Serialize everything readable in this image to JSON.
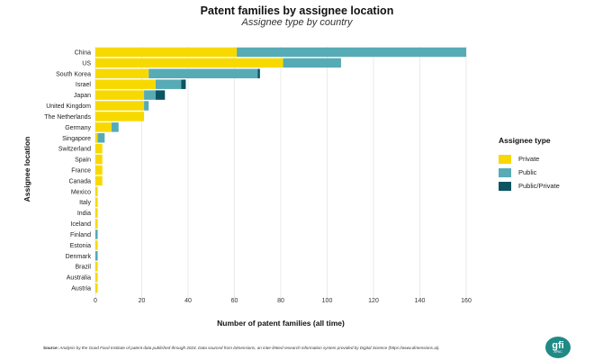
{
  "chart_data": {
    "type": "bar",
    "orientation": "horizontal",
    "stacked": true,
    "title": "Patent families by assignee location",
    "subtitle": "Assignee type by country",
    "xlabel": "Number of patent families (all time)",
    "ylabel": "Assignee location",
    "xlim": [
      0,
      160
    ],
    "xticks": [
      0,
      20,
      40,
      60,
      80,
      100,
      120,
      140,
      160
    ],
    "grid": "vertical",
    "legend_position": "right",
    "categories": [
      "China",
      "US",
      "South Korea",
      "Israel",
      "Japan",
      "United Kingdom",
      "The Netherlands",
      "Germany",
      "Singapore",
      "Switzerland",
      "Spain",
      "France",
      "Canada",
      "Mexico",
      "Italy",
      "India",
      "Iceland",
      "Finland",
      "Estonia",
      "Denmark",
      "Brazil",
      "Australia",
      "Austria"
    ],
    "series": [
      {
        "name": "Private",
        "color": "#f7d900",
        "values": [
          61,
          81,
          23,
          26,
          21,
          21,
          21,
          7,
          1,
          3,
          3,
          3,
          3,
          1,
          1,
          1,
          1,
          0,
          1,
          0,
          1,
          1,
          1
        ]
      },
      {
        "name": "Public",
        "color": "#56abb5",
        "values": [
          99,
          25,
          47,
          11,
          5,
          2,
          0,
          3,
          3,
          0,
          0,
          0,
          0,
          0,
          0,
          0,
          0,
          1,
          0,
          1,
          0,
          0,
          0
        ]
      },
      {
        "name": "Public/Private",
        "color": "#0c5461",
        "values": [
          0,
          0,
          1,
          2,
          4,
          0,
          0,
          0,
          0,
          0,
          0,
          0,
          0,
          0,
          0,
          0,
          0,
          0,
          0,
          0,
          0,
          0,
          0
        ]
      }
    ]
  },
  "legend": {
    "title": "Assignee type"
  },
  "source": {
    "label": "Source:",
    "text": "Analysis by the Good Food Institute of patent data published through 2024. Data sourced from Dimensions, an inter-linked research information system provided by Digital Science (https://www.dimensions.ai)."
  },
  "logo": {
    "main": "gfi",
    "sub": "APAC"
  }
}
